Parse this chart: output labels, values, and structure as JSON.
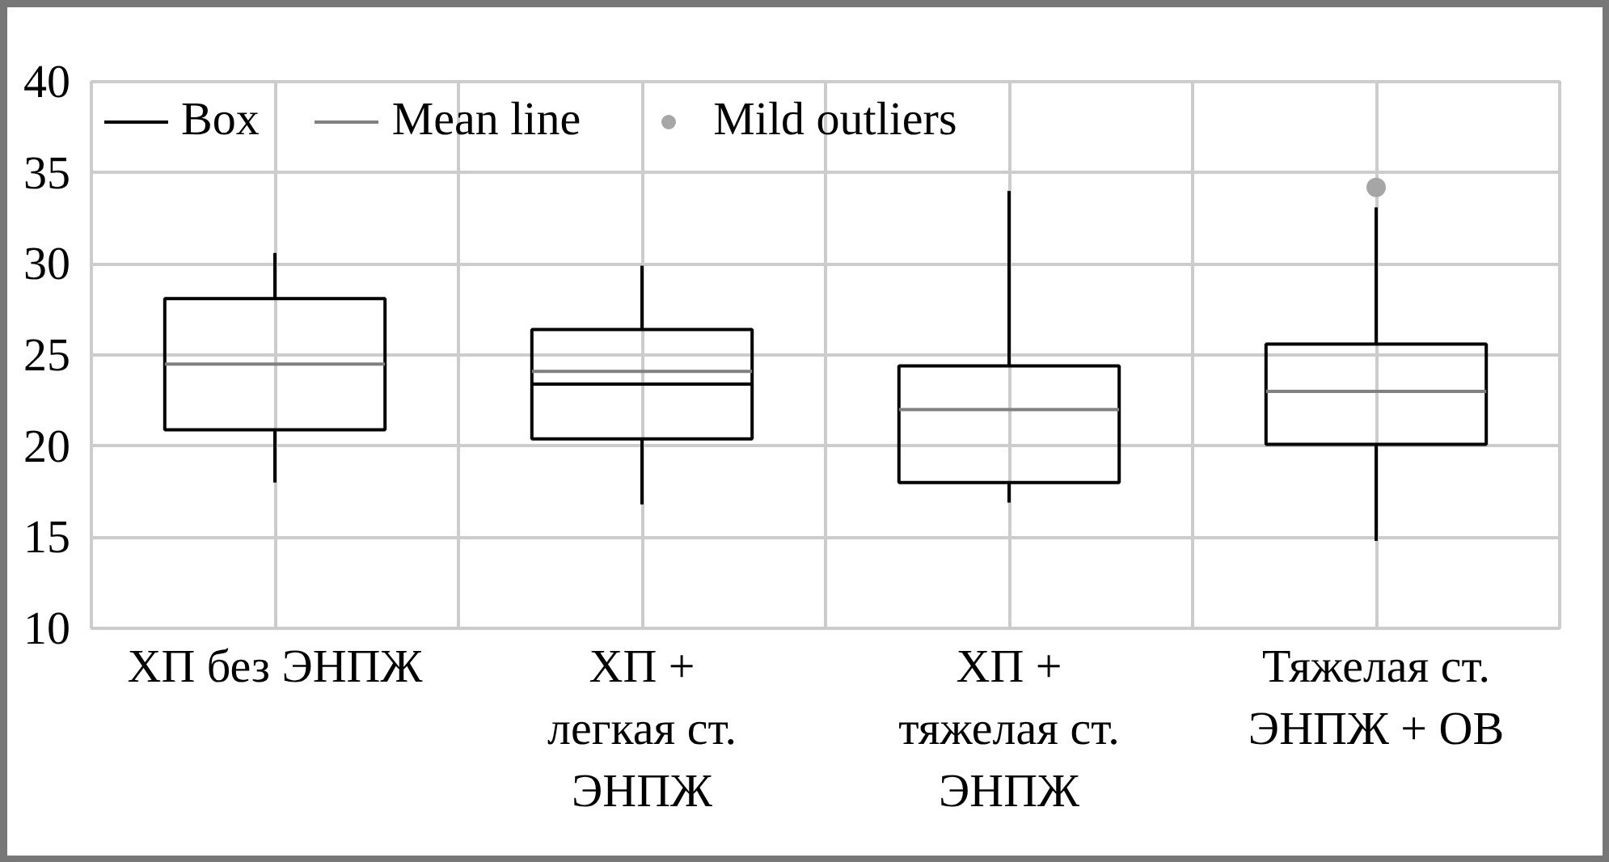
{
  "chart_data": {
    "type": "box",
    "categories": [
      "ХП без ЭНПЖ",
      "ХП +\nлегкая ст.\nЭНПЖ",
      "ХП +\nтяжелая ст.\nЭНПЖ",
      "Тяжелая ст.\nЭНПЖ + ОВ"
    ],
    "series": [
      {
        "name": "Box",
        "color": "#000000",
        "boxes": [
          {
            "low": 18.0,
            "q1": 20.9,
            "median": null,
            "q3": 28.1,
            "high": 30.6,
            "mean": 24.5
          },
          {
            "low": 16.8,
            "q1": 20.4,
            "median": 23.4,
            "q3": 26.4,
            "high": 29.9,
            "mean": 24.1
          },
          {
            "low": 16.9,
            "q1": 18.0,
            "median": null,
            "q3": 24.4,
            "high": 34.0,
            "mean": 22.0
          },
          {
            "low": 14.8,
            "q1": 20.1,
            "median": null,
            "q3": 25.6,
            "high": 33.1,
            "mean": 23.0
          }
        ]
      },
      {
        "name": "Mean line",
        "color": "#808080",
        "values": [
          null,
          null,
          null,
          null
        ]
      },
      {
        "name": "Mild outliers",
        "type": "scatter",
        "color": "#a6a6a6",
        "marker": "circle",
        "values": [
          null,
          null,
          null,
          34.2
        ]
      }
    ],
    "ylim": [
      10,
      40
    ],
    "yticks": [
      10,
      15,
      20,
      25,
      30,
      35,
      40
    ],
    "grid": true,
    "legend": "top left"
  }
}
